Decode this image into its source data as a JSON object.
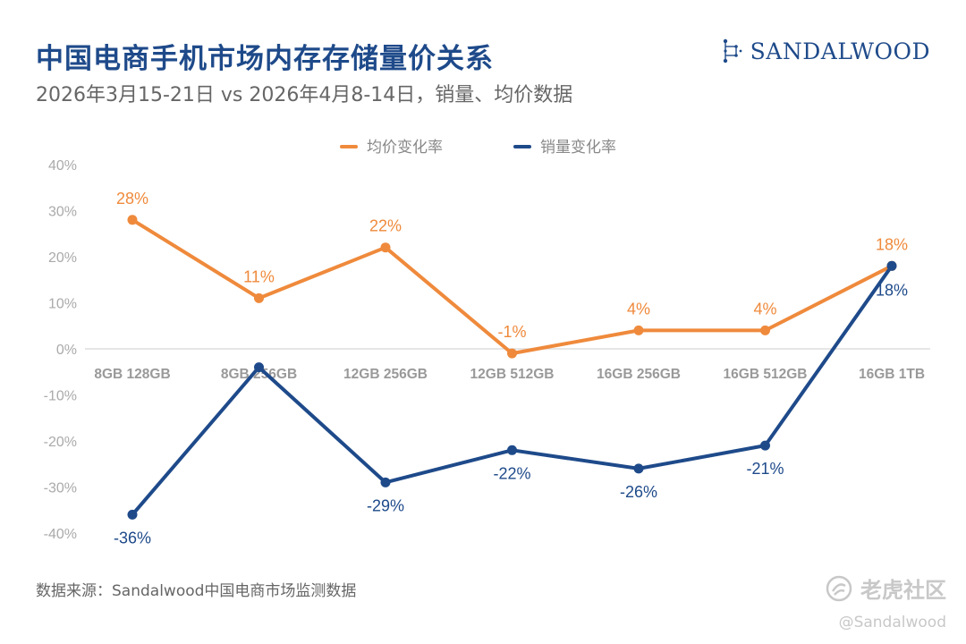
{
  "header": {
    "title": "中国电商手机市场内存存储量价关系",
    "subtitle": "2026年3月15-21日 vs 2026年4月8-14日，销量、均价数据"
  },
  "brand": {
    "name": "SANDALWOOD",
    "icon": "constellation-logo-icon"
  },
  "footer": {
    "source": "数据来源：Sandalwood中国电商市场监测数据",
    "watermark": "老虎社区",
    "handle": "@Sandalwood"
  },
  "colors": {
    "price": "#ef8a3c",
    "volume": "#1e4a8a",
    "axis_text": "#aaaaaa",
    "category_text": "#999999",
    "grid": "#dddddd"
  },
  "chart_data": {
    "type": "line",
    "categories": [
      "8GB 128GB",
      "8GB 256GB",
      "12GB 256GB",
      "12GB 512GB",
      "16GB 256GB",
      "16GB 512GB",
      "16GB 1TB"
    ],
    "series": [
      {
        "name": "均价变化率",
        "values": [
          28,
          11,
          22,
          -1,
          4,
          4,
          18
        ],
        "labels": [
          "28%",
          "11%",
          "22%",
          "-1%",
          "4%",
          "4%",
          "18%"
        ]
      },
      {
        "name": "销量变化率",
        "values": [
          -36,
          -4,
          -29,
          -22,
          -26,
          -21,
          18
        ],
        "labels": [
          "-36%",
          "",
          "-29%",
          "-22%",
          "-26%",
          "-21%",
          "18%"
        ]
      }
    ],
    "yticks": [
      "40%",
      "30%",
      "20%",
      "10%",
      "0%",
      "-10%",
      "-20%",
      "-30%",
      "-40%"
    ],
    "ylim": [
      -40,
      40
    ],
    "legend": "top-center",
    "grid": "zero-line"
  }
}
